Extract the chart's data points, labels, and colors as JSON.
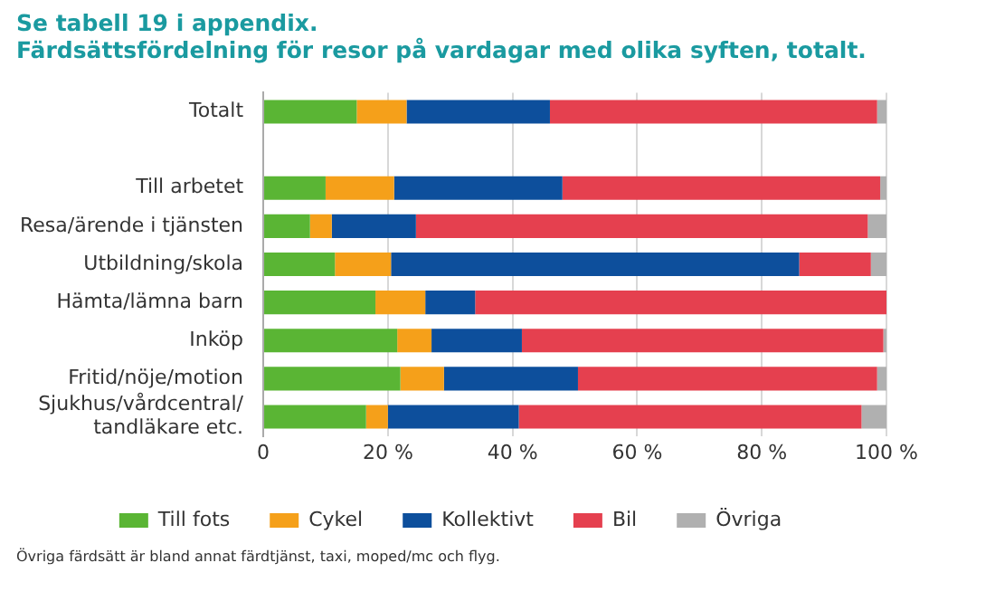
{
  "chart_data": {
    "type": "bar",
    "orientation": "horizontal",
    "stacked": true,
    "title": "Se tabell 19 i appendix.",
    "subtitle": "Färdsättsfördelning för resor på vardagar med olika syften, totalt.",
    "categories": [
      "Totalt",
      null,
      "Till arbetet",
      "Resa/ärende i tjänsten",
      "Utbildning/skola",
      "Hämta/lämna barn",
      "Inköp",
      "Fritid/nöje/motion",
      "Sjukhus/vårdcentral/\ntandläkare etc."
    ],
    "series": [
      {
        "name": "Till fots",
        "color": "#5ab534",
        "values": [
          15,
          null,
          10,
          7.5,
          11.5,
          18,
          21.5,
          22,
          16.5
        ]
      },
      {
        "name": "Cykel",
        "color": "#f5a01a",
        "values": [
          8,
          null,
          11,
          3.5,
          9,
          8,
          5.5,
          7,
          3.5
        ]
      },
      {
        "name": "Kollektivt",
        "color": "#0d4f9c",
        "values": [
          23,
          null,
          27,
          13.5,
          65.5,
          8,
          14.5,
          21.5,
          21
        ]
      },
      {
        "name": "Bil",
        "color": "#e5404f",
        "values": [
          52.5,
          null,
          51,
          72.5,
          11.5,
          66,
          58,
          48,
          55
        ]
      },
      {
        "name": "Övriga",
        "color": "#b0b0b0",
        "values": [
          1.5,
          null,
          1,
          3,
          2.5,
          0,
          0.5,
          1.5,
          4
        ]
      }
    ],
    "xlim": [
      0,
      100
    ],
    "xticks": [
      {
        "value": 0,
        "label": "0"
      },
      {
        "value": 20,
        "label": "20 %"
      },
      {
        "value": 40,
        "label": "40 %"
      },
      {
        "value": 60,
        "label": "60 %"
      },
      {
        "value": 80,
        "label": "80 %"
      },
      {
        "value": 100,
        "label": "100 %"
      }
    ],
    "grid": "x",
    "legend": "bottom",
    "annotations": [
      "Övriga färdsätt är bland annat färdtjänst, taxi, moped/mc och flyg."
    ]
  }
}
